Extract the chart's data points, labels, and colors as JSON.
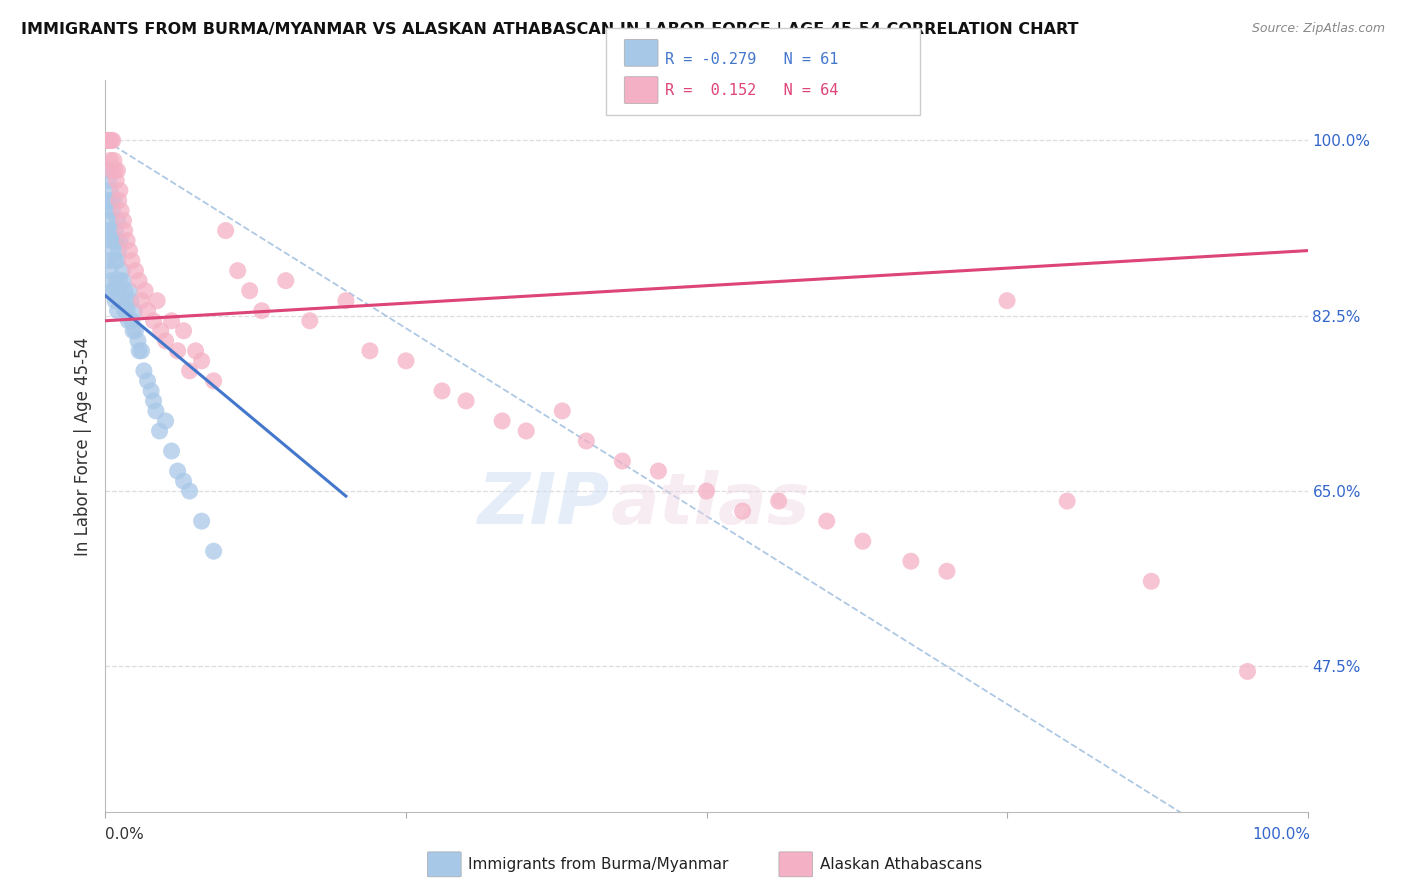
{
  "title": "IMMIGRANTS FROM BURMA/MYANMAR VS ALASKAN ATHABASCAN IN LABOR FORCE | AGE 45-54 CORRELATION CHART",
  "source": "Source: ZipAtlas.com",
  "ylabel": "In Labor Force | Age 45-54",
  "ytick_values": [
    0.475,
    0.65,
    0.825,
    1.0
  ],
  "ytick_labels": [
    "47.5%",
    "65.0%",
    "82.5%",
    "100.0%"
  ],
  "xmin": 0.0,
  "xmax": 1.0,
  "ymin": 0.33,
  "ymax": 1.06,
  "legend_blue_r": "-0.279",
  "legend_blue_n": "61",
  "legend_pink_r": " 0.152",
  "legend_pink_n": "64",
  "legend_label_blue": "Immigrants from Burma/Myanmar",
  "legend_label_pink": "Alaskan Athabascans",
  "blue_fill": "#a8c8e8",
  "pink_fill": "#f4b0c4",
  "blue_line": "#4477cc",
  "pink_line": "#dd4477",
  "diag_color": "#99bbdd",
  "grid_color": "#dddddd",
  "bg_color": "#ffffff",
  "title_color": "#111111",
  "source_color": "#888888",
  "right_tick_color": "#3366cc",
  "blue_scatter_x": [
    0.001,
    0.001,
    0.002,
    0.002,
    0.003,
    0.003,
    0.003,
    0.004,
    0.004,
    0.004,
    0.005,
    0.005,
    0.005,
    0.006,
    0.006,
    0.006,
    0.007,
    0.007,
    0.007,
    0.008,
    0.008,
    0.008,
    0.009,
    0.009,
    0.01,
    0.01,
    0.01,
    0.011,
    0.011,
    0.012,
    0.012,
    0.013,
    0.014,
    0.015,
    0.016,
    0.016,
    0.017,
    0.018,
    0.019,
    0.02,
    0.021,
    0.022,
    0.023,
    0.024,
    0.025,
    0.027,
    0.028,
    0.03,
    0.032,
    0.035,
    0.038,
    0.04,
    0.042,
    0.045,
    0.05,
    0.055,
    0.06,
    0.065,
    0.07,
    0.08,
    0.09
  ],
  "blue_scatter_y": [
    0.97,
    0.93,
    0.94,
    0.91,
    0.96,
    0.92,
    0.88,
    0.95,
    0.91,
    0.87,
    0.94,
    0.9,
    0.86,
    0.93,
    0.89,
    0.85,
    0.94,
    0.9,
    0.85,
    0.91,
    0.88,
    0.84,
    0.9,
    0.86,
    0.92,
    0.88,
    0.83,
    0.89,
    0.85,
    0.9,
    0.86,
    0.84,
    0.87,
    0.86,
    0.85,
    0.83,
    0.84,
    0.83,
    0.82,
    0.85,
    0.84,
    0.82,
    0.81,
    0.83,
    0.81,
    0.8,
    0.79,
    0.79,
    0.77,
    0.76,
    0.75,
    0.74,
    0.73,
    0.71,
    0.72,
    0.69,
    0.67,
    0.66,
    0.65,
    0.62,
    0.59
  ],
  "pink_scatter_x": [
    0.001,
    0.002,
    0.003,
    0.003,
    0.004,
    0.005,
    0.005,
    0.006,
    0.007,
    0.008,
    0.009,
    0.01,
    0.011,
    0.012,
    0.013,
    0.015,
    0.016,
    0.018,
    0.02,
    0.022,
    0.025,
    0.028,
    0.03,
    0.033,
    0.035,
    0.04,
    0.043,
    0.046,
    0.05,
    0.055,
    0.06,
    0.065,
    0.07,
    0.075,
    0.08,
    0.09,
    0.1,
    0.11,
    0.12,
    0.13,
    0.15,
    0.17,
    0.2,
    0.22,
    0.25,
    0.28,
    0.3,
    0.33,
    0.35,
    0.38,
    0.4,
    0.43,
    0.46,
    0.5,
    0.53,
    0.56,
    0.6,
    0.63,
    0.67,
    0.7,
    0.75,
    0.8,
    0.87,
    0.95
  ],
  "pink_scatter_y": [
    1.0,
    1.0,
    1.0,
    1.0,
    0.98,
    1.0,
    0.97,
    1.0,
    0.98,
    0.97,
    0.96,
    0.97,
    0.94,
    0.95,
    0.93,
    0.92,
    0.91,
    0.9,
    0.89,
    0.88,
    0.87,
    0.86,
    0.84,
    0.85,
    0.83,
    0.82,
    0.84,
    0.81,
    0.8,
    0.82,
    0.79,
    0.81,
    0.77,
    0.79,
    0.78,
    0.76,
    0.91,
    0.87,
    0.85,
    0.83,
    0.86,
    0.82,
    0.84,
    0.79,
    0.78,
    0.75,
    0.74,
    0.72,
    0.71,
    0.73,
    0.7,
    0.68,
    0.67,
    0.65,
    0.63,
    0.64,
    0.62,
    0.6,
    0.58,
    0.57,
    0.84,
    0.64,
    0.56,
    0.47
  ]
}
